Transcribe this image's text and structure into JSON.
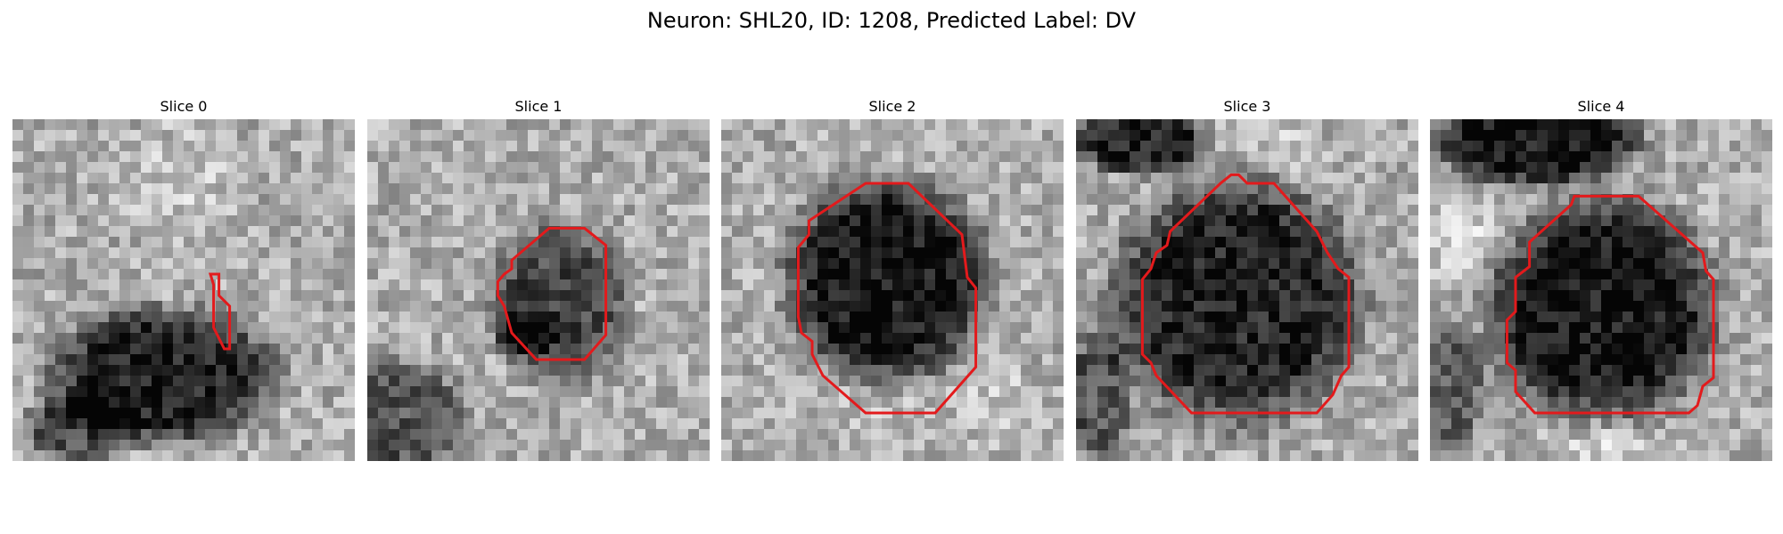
{
  "figure": {
    "suptitle": "Neuron: SHL20, ID: 1208, Predicted Label: DV",
    "outline_color": "#e31a1c"
  },
  "panels": [
    {
      "title": "Slice 0",
      "blobs": [
        {
          "cx": 14,
          "cy": 24,
          "rx": 10,
          "ry": 6,
          "depth": 0.55
        },
        {
          "cx": 6,
          "cy": 29,
          "rx": 5,
          "ry": 3,
          "depth": 0.35
        }
      ],
      "bright": [
        {
          "cx": 16,
          "cy": 6,
          "r": 8,
          "amt": 0.12
        }
      ]
    },
    {
      "title": "Slice 1",
      "blobs": [
        {
          "cx": 18,
          "cy": 17,
          "rx": 6,
          "ry": 7,
          "depth": 0.4
        },
        {
          "cx": 15,
          "cy": 20,
          "rx": 3,
          "ry": 2,
          "depth": 0.3
        },
        {
          "cx": 3,
          "cy": 28,
          "rx": 6,
          "ry": 5,
          "depth": 0.35
        }
      ],
      "bright": []
    },
    {
      "title": "Slice 2",
      "blobs": [
        {
          "cx": 15.5,
          "cy": 15,
          "rx": 9,
          "ry": 9,
          "depth": 0.6
        }
      ],
      "bright": [
        {
          "cx": 26,
          "cy": 27,
          "r": 6,
          "amt": 0.12
        },
        {
          "cx": 15,
          "cy": 26,
          "r": 5,
          "amt": 0.08
        }
      ]
    },
    {
      "title": "Slice 3",
      "blobs": [
        {
          "cx": 15,
          "cy": 17,
          "rx": 11,
          "ry": 11,
          "depth": 0.55
        },
        {
          "cx": 6,
          "cy": 2,
          "rx": 6,
          "ry": 3,
          "depth": 0.55
        },
        {
          "cx": 2,
          "cy": 26,
          "rx": 3,
          "ry": 6,
          "depth": 0.35
        }
      ],
      "bright": [
        {
          "cx": 20,
          "cy": 3,
          "r": 4,
          "amt": 0.15
        }
      ]
    },
    {
      "title": "Slice 4",
      "blobs": [
        {
          "cx": 16,
          "cy": 18,
          "rx": 10,
          "ry": 10,
          "depth": 0.6
        },
        {
          "cx": 10,
          "cy": 2,
          "rx": 9,
          "ry": 4,
          "depth": 0.6
        },
        {
          "cx": 2,
          "cy": 25,
          "rx": 3,
          "ry": 6,
          "depth": 0.3
        }
      ],
      "bright": [
        {
          "cx": 3,
          "cy": 11,
          "r": 5,
          "amt": 0.2
        },
        {
          "cx": 16,
          "cy": 29,
          "r": 6,
          "amt": 0.18
        }
      ]
    }
  ]
}
